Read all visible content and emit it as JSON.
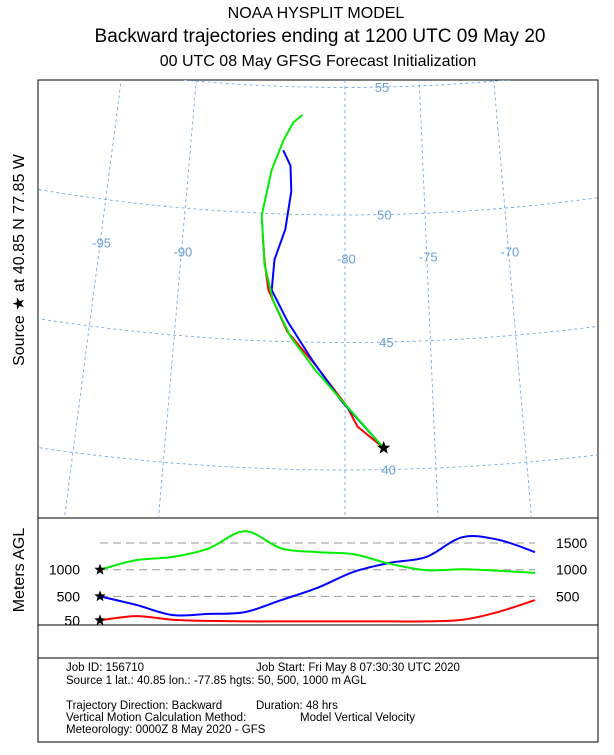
{
  "header": {
    "line1": "NOAA HYSPLIT MODEL",
    "line2": "Backward trajectories ending at 1200 UTC 09 May 20",
    "line3": "00 UTC 08 May     GFSG  Forecast Initialization"
  },
  "side_label": "Source ★ at 40.85 N 77.85 W",
  "map": {
    "lat_lines": [
      40,
      45,
      50,
      55
    ],
    "lon_lines": [
      -95,
      -90,
      -80,
      -75,
      -70
    ],
    "trajectories": [
      {
        "color": "#ff0000",
        "lon": [
          -77.85,
          -79.3,
          -79.9,
          -81.7,
          -83.4,
          -84.6,
          -84.9,
          -85.1
        ],
        "lat": [
          40.85,
          41.7,
          42.5,
          44.1,
          45.4,
          47.0,
          48.1,
          49.2
        ]
      },
      {
        "color": "#0000ff",
        "lon": [
          -77.85,
          -80.2,
          -81.9,
          -83.4,
          -84.4,
          -84.3,
          -83.7,
          -83.4,
          -83.5,
          -84.0
        ],
        "lat": [
          40.85,
          42.7,
          44.3,
          45.8,
          47.0,
          48.2,
          49.4,
          50.9,
          51.9,
          52.5
        ]
      },
      {
        "color": "#00ee00",
        "lon": [
          -77.85,
          -79.9,
          -81.7,
          -83.2,
          -84.3,
          -84.9,
          -85.2,
          -84.7,
          -84.0,
          -83.4,
          -82.8
        ],
        "lat": [
          40.85,
          42.5,
          43.9,
          45.2,
          46.6,
          48.0,
          49.9,
          51.7,
          52.9,
          53.6,
          53.9
        ]
      }
    ]
  },
  "height_panel": {
    "axis_label": "Meters AGL",
    "levels": [
      1500,
      1000,
      500
    ],
    "hours": [
      0,
      -4,
      -8,
      -12,
      -16,
      -20,
      -24,
      -28,
      -32,
      -36,
      -40,
      -44,
      -48
    ],
    "series": [
      {
        "color": "#ff0000",
        "values": [
          50,
          130,
          60,
          40,
          30,
          30,
          30,
          30,
          30,
          30,
          60,
          210,
          430
        ]
      },
      {
        "color": "#0000ff",
        "values": [
          500,
          340,
          150,
          170,
          205,
          430,
          660,
          960,
          1130,
          1240,
          1610,
          1560,
          1330
        ]
      },
      {
        "color": "#00ee00",
        "values": [
          1000,
          1180,
          1240,
          1400,
          1720,
          1400,
          1330,
          1290,
          1110,
          990,
          1010,
          980,
          940
        ]
      }
    ]
  },
  "footer": {
    "job_id": "Job ID: 156710",
    "job_start": "Job Start: Fri May  8 07:30:30 UTC 2020",
    "source": "Source 1 lat.: 40.85  lon.: -77.85  hgts: 50, 500, 1000 m AGL",
    "direction": "Trajectory Direction: Backward",
    "duration": "Duration: 48 hrs",
    "vertical": "Vertical Motion Calculation Method:",
    "vertical_value": "Model Vertical Velocity",
    "meteorology": "Meteorology: 0000Z  8 May 2020 - GFS"
  }
}
